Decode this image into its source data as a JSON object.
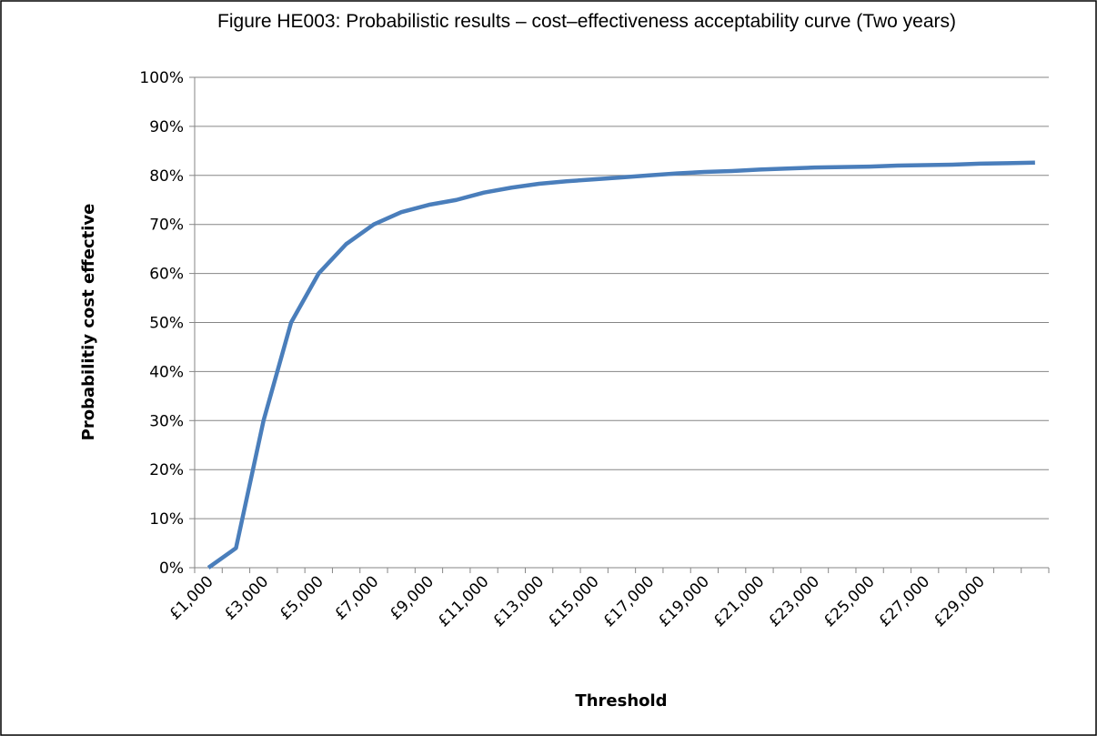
{
  "chart_data": {
    "type": "line",
    "title": "Figure HE003: Probabilistic results – cost–effectiveness acceptability curve (Two years)",
    "x_label": "Threshold",
    "y_label": "Probabilitiy cost effective",
    "categories": [
      "£1,000",
      null,
      "£3,000",
      null,
      "£5,000",
      null,
      "£7,000",
      null,
      "£9,000",
      null,
      "£11,000",
      null,
      "£13,000",
      null,
      "£15,000",
      null,
      "£17,000",
      null,
      "£19,000",
      null,
      "£21,000",
      null,
      "£23,000",
      null,
      "£25,000",
      null,
      "£27,000",
      null,
      "£29,000",
      null,
      null
    ],
    "values": [
      0,
      4,
      30,
      50,
      60,
      66,
      70,
      72.5,
      74,
      75,
      76.5,
      77.5,
      78.3,
      78.8,
      79.2,
      79.6,
      80,
      80.4,
      80.7,
      80.9,
      81.2,
      81.4,
      81.6,
      81.7,
      81.8,
      82,
      82.1,
      82.2,
      82.4,
      82.5,
      82.6
    ],
    "color": "#4a7ebb",
    "ylim": [
      0,
      100
    ],
    "yticks": [
      {
        "value": 0,
        "label": "0%"
      },
      {
        "value": 10,
        "label": "10%"
      },
      {
        "value": 20,
        "label": "20%"
      },
      {
        "value": 30,
        "label": "30%"
      },
      {
        "value": 40,
        "label": "40%"
      },
      {
        "value": 50,
        "label": "50%"
      },
      {
        "value": 60,
        "label": "60%"
      },
      {
        "value": 70,
        "label": "70%"
      },
      {
        "value": 80,
        "label": "80%"
      },
      {
        "value": 90,
        "label": "90%"
      },
      {
        "value": 100,
        "label": "100%"
      }
    ],
    "grid": true
  }
}
